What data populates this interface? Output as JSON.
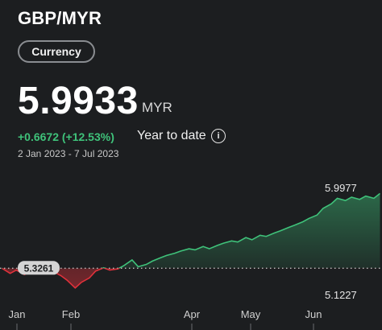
{
  "header": {
    "pair": "GBP/MYR",
    "category_chip": "Currency"
  },
  "quote": {
    "price": "5.9933",
    "unit": "MYR",
    "change": "+0.6672 (+12.53%)",
    "period_label": "Year to date",
    "date_range": "2 Jan 2023 - 7 Jul 2023",
    "info_icon": "info-icon"
  },
  "colors": {
    "positive": "#3fc27a",
    "negative": "#e0313b",
    "background": "#1c1e20"
  },
  "chart_data": {
    "type": "line",
    "baseline": 5.3261,
    "baseline_label": "5.3261",
    "high_label": "5.9977",
    "low_label": "5.1227",
    "x_tick_labels": [
      "Jan",
      "Feb",
      "Apr",
      "May",
      "Jun"
    ],
    "series": [
      {
        "x": [
          "2023-01-02",
          "2023-01-06",
          "2023-01-09",
          "2023-01-13",
          "2023-01-17",
          "2023-01-20",
          "2023-01-24",
          "2023-01-27",
          "2023-01-31",
          "2023-02-03",
          "2023-02-07",
          "2023-02-10",
          "2023-02-14",
          "2023-02-17",
          "2023-02-21",
          "2023-02-24",
          "2023-02-28",
          "2023-03-03",
          "2023-03-07",
          "2023-03-10",
          "2023-03-14",
          "2023-03-17",
          "2023-03-21",
          "2023-03-24",
          "2023-03-28",
          "2023-03-31",
          "2023-04-04",
          "2023-04-07",
          "2023-04-11",
          "2023-04-14",
          "2023-04-18",
          "2023-04-21",
          "2023-04-25",
          "2023-04-28",
          "2023-05-02",
          "2023-05-05",
          "2023-05-09",
          "2023-05-12",
          "2023-05-16",
          "2023-05-19",
          "2023-05-23",
          "2023-05-26",
          "2023-05-30",
          "2023-06-02",
          "2023-06-06",
          "2023-06-09",
          "2023-06-13",
          "2023-06-16",
          "2023-06-20",
          "2023-06-23",
          "2023-06-27",
          "2023-06-30",
          "2023-07-04",
          "2023-07-07"
        ],
        "y": [
          5.3261,
          5.28,
          5.31,
          5.27,
          5.3,
          5.32,
          5.34,
          5.3,
          5.26,
          5.22,
          5.15,
          5.2,
          5.24,
          5.3,
          5.33,
          5.31,
          5.32,
          5.35,
          5.4,
          5.34,
          5.36,
          5.39,
          5.42,
          5.44,
          5.46,
          5.48,
          5.5,
          5.49,
          5.52,
          5.5,
          5.53,
          5.55,
          5.57,
          5.56,
          5.6,
          5.58,
          5.62,
          5.61,
          5.64,
          5.66,
          5.69,
          5.71,
          5.74,
          5.77,
          5.8,
          5.86,
          5.9,
          5.95,
          5.93,
          5.96,
          5.94,
          5.97,
          5.95,
          5.9933
        ]
      }
    ]
  }
}
